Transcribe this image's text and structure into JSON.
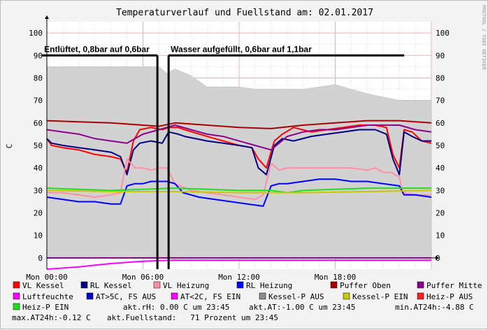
{
  "chart_data": {
    "type": "line",
    "title": "Temperaturverlauf und Fuellstand am: 02.01.2017",
    "ylabel": "C",
    "watermark": "RRDTOOL / TOBI OETIKER",
    "ylim": [
      -5,
      105
    ],
    "xlim": [
      0,
      24
    ],
    "y_ticks": [
      "0",
      "10",
      "20",
      "30",
      "40",
      "50",
      "60",
      "70",
      "80",
      "90",
      "100"
    ],
    "x_ticks": [
      {
        "x": 0,
        "label": "Mon 00:00"
      },
      {
        "x": 6,
        "label": "Mon 06:00"
      },
      {
        "x": 12,
        "label": "Mon 12:00"
      },
      {
        "x": 18,
        "label": "Mon 18:00"
      }
    ],
    "annotations": [
      {
        "text": "Entlüftet, 0,8bar auf 0,6bar",
        "x_start": -0.3,
        "x_end": 6.9,
        "y": 90
      },
      {
        "text": "Wasser aufgefüllt, 0,6bar auf 1,1bar",
        "x_start": 7.6,
        "x_end": 22.3,
        "y": 90
      }
    ],
    "series": [
      {
        "name": "Fuellstand",
        "color": "#d2d2d2",
        "kind": "area",
        "points": [
          [
            0,
            85
          ],
          [
            7,
            85
          ],
          [
            7.5,
            82
          ],
          [
            8,
            84
          ],
          [
            9,
            81
          ],
          [
            10,
            76
          ],
          [
            12,
            76
          ],
          [
            13,
            75
          ],
          [
            16,
            75
          ],
          [
            18,
            77
          ],
          [
            20,
            73
          ],
          [
            22,
            70
          ],
          [
            24,
            70
          ]
        ]
      },
      {
        "name": "VL Kessel",
        "color": "#ff0000",
        "points": [
          [
            0,
            53
          ],
          [
            0.3,
            50
          ],
          [
            1,
            49
          ],
          [
            2,
            48
          ],
          [
            3,
            46
          ],
          [
            4,
            45
          ],
          [
            4.6,
            44
          ],
          [
            5,
            38
          ],
          [
            5.4,
            52
          ],
          [
            5.8,
            57
          ],
          [
            6.5,
            58
          ],
          [
            7.2,
            57
          ],
          [
            7.6,
            58
          ],
          [
            8.2,
            58
          ],
          [
            8.6,
            57
          ],
          [
            10,
            54
          ],
          [
            11,
            52
          ],
          [
            12,
            50
          ],
          [
            12.8,
            49
          ],
          [
            13.2,
            44
          ],
          [
            13.7,
            40
          ],
          [
            14.2,
            52
          ],
          [
            14.7,
            55
          ],
          [
            15.4,
            58
          ],
          [
            16.5,
            56
          ],
          [
            17.5,
            57
          ],
          [
            18.5,
            58
          ],
          [
            19.5,
            59
          ],
          [
            20.5,
            59
          ],
          [
            21.2,
            58
          ],
          [
            21.6,
            46
          ],
          [
            22,
            40
          ],
          [
            22.3,
            57
          ],
          [
            22.8,
            56
          ],
          [
            23.4,
            52
          ],
          [
            24,
            51
          ]
        ]
      },
      {
        "name": "RL Kessel",
        "color": "#000080",
        "points": [
          [
            0,
            53
          ],
          [
            0.3,
            51
          ],
          [
            1,
            50
          ],
          [
            2,
            49
          ],
          [
            3,
            48
          ],
          [
            4,
            47
          ],
          [
            4.6,
            45
          ],
          [
            5,
            37
          ],
          [
            5.4,
            48
          ],
          [
            5.8,
            51
          ],
          [
            6.5,
            52
          ],
          [
            7.2,
            51
          ],
          [
            7.6,
            56
          ],
          [
            8.2,
            55
          ],
          [
            8.6,
            54
          ],
          [
            10,
            52
          ],
          [
            11,
            51
          ],
          [
            12,
            50
          ],
          [
            12.8,
            49
          ],
          [
            13.2,
            40
          ],
          [
            13.7,
            37
          ],
          [
            14.2,
            50
          ],
          [
            14.7,
            53
          ],
          [
            15.4,
            52
          ],
          [
            16.5,
            54
          ],
          [
            17.5,
            55
          ],
          [
            18.5,
            56
          ],
          [
            19.5,
            57
          ],
          [
            20.5,
            57
          ],
          [
            21.2,
            55
          ],
          [
            21.6,
            44
          ],
          [
            22,
            37
          ],
          [
            22.3,
            56
          ],
          [
            22.8,
            54
          ],
          [
            23.4,
            52
          ],
          [
            24,
            52
          ]
        ]
      },
      {
        "name": "VL Heizung",
        "color": "#ff8fa6",
        "points": [
          [
            0,
            29
          ],
          [
            1,
            29
          ],
          [
            2,
            28
          ],
          [
            3,
            27
          ],
          [
            4,
            28
          ],
          [
            4.6,
            29
          ],
          [
            5,
            44
          ],
          [
            5.5,
            40
          ],
          [
            6,
            40
          ],
          [
            6.5,
            39
          ],
          [
            7,
            40
          ],
          [
            7.5,
            40
          ],
          [
            8,
            33
          ],
          [
            9,
            30
          ],
          [
            10,
            29
          ],
          [
            11,
            28
          ],
          [
            12,
            27
          ],
          [
            13,
            26
          ],
          [
            13.5,
            28
          ],
          [
            14,
            42
          ],
          [
            14.5,
            39
          ],
          [
            15,
            40
          ],
          [
            16,
            40
          ],
          [
            17,
            40
          ],
          [
            18,
            40
          ],
          [
            19,
            40
          ],
          [
            20,
            39
          ],
          [
            20.5,
            40
          ],
          [
            21,
            38
          ],
          [
            21.5,
            38
          ],
          [
            22,
            36
          ],
          [
            22.2,
            29
          ],
          [
            23,
            28
          ],
          [
            24,
            28
          ]
        ]
      },
      {
        "name": "RL Heizung",
        "color": "#0000ff",
        "points": [
          [
            0,
            27
          ],
          [
            1,
            26
          ],
          [
            2,
            25
          ],
          [
            3,
            25
          ],
          [
            4,
            24
          ],
          [
            4.6,
            24
          ],
          [
            5,
            32
          ],
          [
            5.5,
            33
          ],
          [
            6,
            33
          ],
          [
            6.5,
            34
          ],
          [
            7,
            34
          ],
          [
            7.5,
            34
          ],
          [
            8,
            33
          ],
          [
            8.5,
            29
          ],
          [
            9.5,
            27
          ],
          [
            10.5,
            26
          ],
          [
            11.5,
            25
          ],
          [
            12.5,
            24
          ],
          [
            13.5,
            23
          ],
          [
            14,
            32
          ],
          [
            14.5,
            33
          ],
          [
            15,
            33
          ],
          [
            16,
            34
          ],
          [
            17,
            35
          ],
          [
            18,
            35
          ],
          [
            19,
            34
          ],
          [
            20,
            34
          ],
          [
            21,
            33
          ],
          [
            22,
            32
          ],
          [
            22.3,
            28
          ],
          [
            23,
            28
          ],
          [
            24,
            27
          ]
        ]
      },
      {
        "name": "Puffer Oben",
        "color": "#a60000",
        "points": [
          [
            0,
            61
          ],
          [
            2,
            60.5
          ],
          [
            4,
            60
          ],
          [
            6,
            59
          ],
          [
            7,
            58.5
          ],
          [
            8,
            60
          ],
          [
            10,
            59
          ],
          [
            12,
            58
          ],
          [
            14,
            57.5
          ],
          [
            16,
            59
          ],
          [
            18,
            60
          ],
          [
            20,
            61
          ],
          [
            22,
            61
          ],
          [
            24,
            60
          ]
        ]
      },
      {
        "name": "Puffer Mitte",
        "color": "#8b008b",
        "points": [
          [
            0,
            57
          ],
          [
            1,
            56
          ],
          [
            2,
            55
          ],
          [
            3,
            53
          ],
          [
            4,
            52
          ],
          [
            5,
            51
          ],
          [
            5.5,
            53
          ],
          [
            6,
            55
          ],
          [
            7,
            57
          ],
          [
            8,
            59
          ],
          [
            9,
            57
          ],
          [
            10,
            55
          ],
          [
            11,
            54
          ],
          [
            12,
            52
          ],
          [
            13,
            50
          ],
          [
            14,
            48
          ],
          [
            15,
            54
          ],
          [
            16,
            56
          ],
          [
            17,
            57
          ],
          [
            18,
            57
          ],
          [
            19,
            58
          ],
          [
            20,
            59
          ],
          [
            21,
            59
          ],
          [
            22,
            59
          ],
          [
            23,
            57
          ],
          [
            24,
            56
          ]
        ]
      },
      {
        "name": "AT>5C, FS AUS",
        "color": "#0000c8",
        "points": []
      },
      {
        "name": "AT<2C, FS EIN",
        "color": "#ff00ff",
        "points": [
          [
            0,
            -5
          ],
          [
            1,
            -4.5
          ],
          [
            2,
            -4
          ],
          [
            3,
            -3.2
          ],
          [
            4,
            -2.5
          ],
          [
            5,
            -2
          ],
          [
            6,
            -1.5
          ],
          [
            7,
            -1.2
          ],
          [
            8,
            -1
          ],
          [
            10,
            -1
          ],
          [
            12,
            -1
          ],
          [
            14,
            -1
          ],
          [
            16,
            -1
          ],
          [
            18,
            -1
          ],
          [
            20,
            -1
          ],
          [
            22,
            -1
          ],
          [
            24,
            -1
          ]
        ]
      },
      {
        "name": "Kessel-P AUS",
        "color": "#8c8c8c",
        "points": []
      },
      {
        "name": "Kessel-P EIN",
        "color": "#c8c800",
        "points": []
      },
      {
        "name": "Heiz-P AUS",
        "color": "#ff2020",
        "points": []
      },
      {
        "name": "Luftfeuchte",
        "color": "#ff00ff",
        "points": [
          [
            0,
            0
          ],
          [
            24,
            0
          ]
        ]
      },
      {
        "name": "Heiz-P EIN",
        "color": "#22dd22",
        "points": [
          [
            0,
            31
          ],
          [
            2,
            30.5
          ],
          [
            4,
            30
          ],
          [
            6,
            30.5
          ],
          [
            8,
            31
          ],
          [
            10,
            30.5
          ],
          [
            12,
            30
          ],
          [
            14,
            30
          ],
          [
            15,
            29
          ],
          [
            16,
            30
          ],
          [
            18,
            30.5
          ],
          [
            20,
            31
          ],
          [
            22,
            31
          ],
          [
            24,
            31
          ]
        ]
      },
      {
        "name": "Kessel-P EIN line",
        "color": "#c8c800",
        "points": [
          [
            0,
            30
          ],
          [
            4,
            29.5
          ],
          [
            8,
            29.5
          ],
          [
            12,
            29
          ],
          [
            16,
            29
          ],
          [
            20,
            29.5
          ],
          [
            24,
            30
          ]
        ]
      }
    ],
    "legend": [
      {
        "label": "VL Kessel",
        "color": "#ff0000"
      },
      {
        "label": "RL Kessel",
        "color": "#000080"
      },
      {
        "label": "VL Heizung",
        "color": "#ff8fa6"
      },
      {
        "label": "RL Heizung",
        "color": "#0000ff"
      },
      {
        "label": "Puffer Oben",
        "color": "#a60000"
      },
      {
        "label": "Puffer Mitte",
        "color": "#8b008b"
      },
      {
        "label": "Luftfeuchte",
        "color": "#ff00ff"
      },
      {
        "label": "AT>5C, FS AUS",
        "color": "#0000c8"
      },
      {
        "label": "AT<2C, FS EIN",
        "color": "#ff00ff"
      },
      {
        "label": "Kessel-P AUS",
        "color": "#8c8c8c"
      },
      {
        "label": "Kessel-P EIN",
        "color": "#c8c800"
      },
      {
        "label": "Heiz-P AUS",
        "color": "#ff2020"
      },
      {
        "label": "Heiz-P EIN",
        "color": "#22dd22"
      }
    ],
    "stats": {
      "rh": "akt.rH: 0.00 C um 23:45",
      "at": "akt.AT:-1.00 C um 23:45",
      "min": "min.AT24h:-4.88 C",
      "max": "max.AT24h:-0.12 C",
      "fuell": "akt.Fuellstand:   71 Prozent um 23:45"
    }
  }
}
